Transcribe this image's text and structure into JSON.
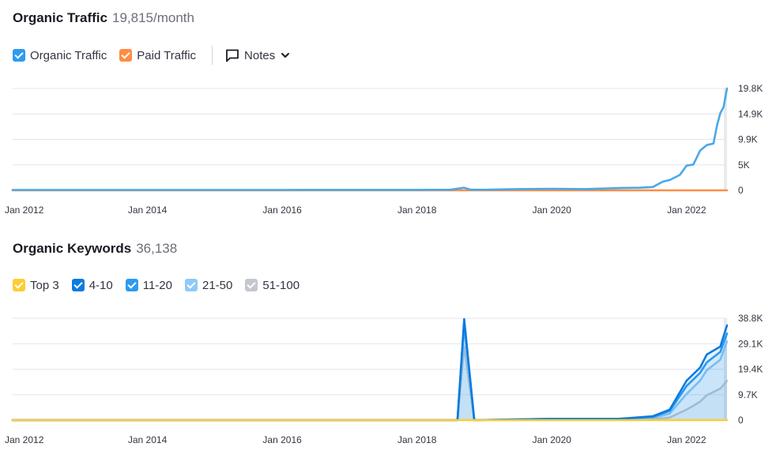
{
  "traffic": {
    "title": "Organic Traffic",
    "metric": "19,815/month",
    "legend": [
      {
        "label": "Organic Traffic",
        "color": "#2d9bf0"
      },
      {
        "label": "Paid Traffic",
        "color": "#ff8c43"
      }
    ],
    "notes_label": "Notes"
  },
  "keywords": {
    "title": "Organic Keywords",
    "metric": "36,138",
    "legend": [
      {
        "label": "Top 3",
        "color": "#ffcc33"
      },
      {
        "label": "4-10",
        "color": "#0b7be0"
      },
      {
        "label": "11-20",
        "color": "#2d9bf0"
      },
      {
        "label": "21-50",
        "color": "#8fcaf7"
      },
      {
        "label": "51-100",
        "color": "#c4c7cf"
      }
    ]
  },
  "chart_data": [
    {
      "type": "line",
      "title": "Organic Traffic",
      "x_tick_labels": [
        "Jan 2012",
        "Jan 2014",
        "Jan 2016",
        "Jan 2018",
        "Jan 2020",
        "Jan 2022"
      ],
      "y_tick_labels": [
        "19.8K",
        "14.9K",
        "9.9K",
        "5K",
        "0"
      ],
      "xlim": [
        2012.0,
        2022.6
      ],
      "ylim": [
        0,
        19800
      ],
      "grid": true,
      "series": [
        {
          "name": "Organic Traffic",
          "color": "#4aa8e8",
          "points": [
            [
              2012.0,
              80
            ],
            [
              2014.0,
              80
            ],
            [
              2016.0,
              80
            ],
            [
              2018.0,
              90
            ],
            [
              2018.5,
              120
            ],
            [
              2018.7,
              500
            ],
            [
              2018.8,
              120
            ],
            [
              2019.0,
              100
            ],
            [
              2019.5,
              250
            ],
            [
              2020.0,
              300
            ],
            [
              2020.5,
              250
            ],
            [
              2021.0,
              450
            ],
            [
              2021.3,
              500
            ],
            [
              2021.5,
              650
            ],
            [
              2021.65,
              1700
            ],
            [
              2021.75,
              2000
            ],
            [
              2021.9,
              3000
            ],
            [
              2022.0,
              4800
            ],
            [
              2022.1,
              5000
            ],
            [
              2022.2,
              7700
            ],
            [
              2022.3,
              8800
            ],
            [
              2022.4,
              9100
            ],
            [
              2022.45,
              12500
            ],
            [
              2022.5,
              15000
            ],
            [
              2022.55,
              16200
            ],
            [
              2022.6,
              19800
            ]
          ]
        },
        {
          "name": "Paid Traffic",
          "color": "#ff8c43",
          "points": [
            [
              2012.0,
              0
            ],
            [
              2018.5,
              0
            ],
            [
              2019.0,
              0
            ],
            [
              2020.0,
              0
            ],
            [
              2021.0,
              0
            ],
            [
              2022.0,
              0
            ],
            [
              2022.6,
              0
            ]
          ]
        }
      ]
    },
    {
      "type": "area",
      "title": "Organic Keywords",
      "x_tick_labels": [
        "Jan 2012",
        "Jan 2014",
        "Jan 2016",
        "Jan 2018",
        "Jan 2020",
        "Jan 2022"
      ],
      "y_tick_labels": [
        "38.8K",
        "29.1K",
        "19.4K",
        "9.7K",
        "0"
      ],
      "xlim": [
        2012.0,
        2022.6
      ],
      "ylim": [
        0,
        38800
      ],
      "grid": true,
      "series": [
        {
          "name": "Top 3",
          "color": "#ffcc33",
          "points": [
            [
              2012.0,
              0
            ],
            [
              2018.0,
              0
            ],
            [
              2020.0,
              0
            ],
            [
              2022.6,
              0
            ]
          ]
        },
        {
          "name": "4-10",
          "color": "#0b7be0",
          "points": [
            [
              2012.0,
              0
            ],
            [
              2018.6,
              0
            ],
            [
              2018.7,
              38500
            ],
            [
              2018.85,
              0
            ],
            [
              2020.0,
              500
            ],
            [
              2021.0,
              500
            ],
            [
              2021.5,
              1500
            ],
            [
              2021.75,
              4000
            ],
            [
              2022.0,
              15000
            ],
            [
              2022.2,
              20000
            ],
            [
              2022.3,
              25000
            ],
            [
              2022.5,
              28000
            ],
            [
              2022.6,
              36100
            ]
          ]
        },
        {
          "name": "11-20",
          "color": "#2d9bf0",
          "points": [
            [
              2012.0,
              0
            ],
            [
              2018.6,
              0
            ],
            [
              2018.7,
              37500
            ],
            [
              2018.85,
              0
            ],
            [
              2020.0,
              500
            ],
            [
              2021.0,
              500
            ],
            [
              2021.5,
              1200
            ],
            [
              2021.75,
              3500
            ],
            [
              2022.0,
              13000
            ],
            [
              2022.2,
              18000
            ],
            [
              2022.3,
              22000
            ],
            [
              2022.5,
              26000
            ],
            [
              2022.6,
              33000
            ]
          ]
        },
        {
          "name": "21-50",
          "color": "#8fcaf7",
          "points": [
            [
              2012.0,
              0
            ],
            [
              2018.6,
              0
            ],
            [
              2018.7,
              35000
            ],
            [
              2018.85,
              0
            ],
            [
              2020.0,
              300
            ],
            [
              2021.0,
              300
            ],
            [
              2021.5,
              800
            ],
            [
              2021.75,
              2500
            ],
            [
              2022.0,
              10000
            ],
            [
              2022.2,
              15000
            ],
            [
              2022.3,
              19000
            ],
            [
              2022.5,
              23000
            ],
            [
              2022.6,
              30000
            ]
          ]
        },
        {
          "name": "51-100",
          "color": "#c4c7cf",
          "points": [
            [
              2012.0,
              0
            ],
            [
              2018.6,
              0
            ],
            [
              2018.7,
              28000
            ],
            [
              2018.85,
              0
            ],
            [
              2020.0,
              100
            ],
            [
              2021.0,
              100
            ],
            [
              2021.5,
              300
            ],
            [
              2021.75,
              1000
            ],
            [
              2022.0,
              4000
            ],
            [
              2022.2,
              7000
            ],
            [
              2022.3,
              9500
            ],
            [
              2022.5,
              12000
            ],
            [
              2022.6,
              15000
            ]
          ]
        }
      ]
    }
  ]
}
